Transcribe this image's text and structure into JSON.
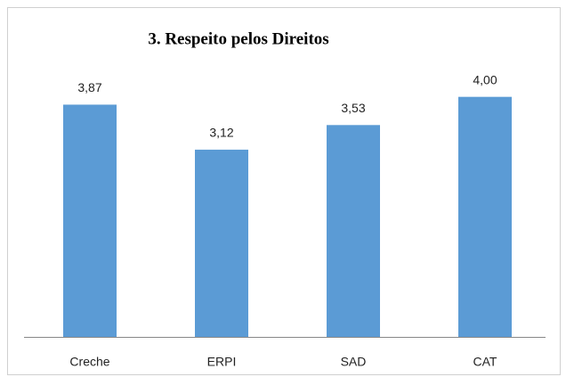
{
  "chart_data": {
    "type": "bar",
    "title": "3. Respeito pelos Direitos",
    "categories": [
      "Creche",
      "ERPI",
      "SAD",
      "CAT"
    ],
    "values": [
      3.87,
      3.12,
      3.53,
      4.0
    ],
    "value_labels": [
      "3,87",
      "3,12",
      "3,53",
      "4,00"
    ],
    "color": "#5b9bd5",
    "ylim": [
      0,
      4.5
    ]
  }
}
